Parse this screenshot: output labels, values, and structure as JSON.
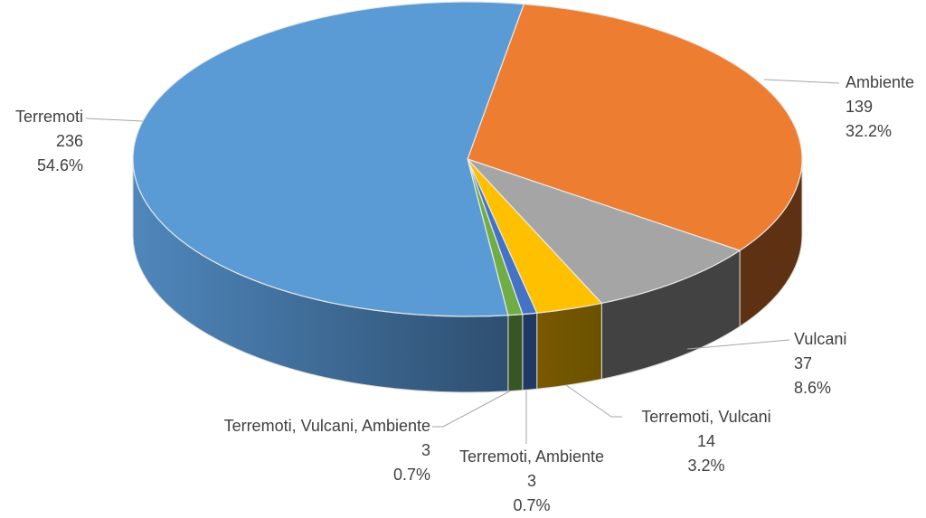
{
  "chart_data": {
    "type": "pie",
    "style": "3d-pie",
    "title": "",
    "legend": "none",
    "categories": [
      "Terremoti",
      "Ambiente",
      "Vulcani",
      "Terremoti, Vulcani",
      "Terremoti, Ambiente",
      "Terremoti, Vulcani, Ambiente"
    ],
    "values": [
      236,
      139,
      37,
      14,
      3,
      3
    ],
    "percentages": [
      "54.6%",
      "32.2%",
      "8.6%",
      "3.2%",
      "0.7%",
      "0.7%"
    ],
    "colors": [
      "#5B9BD5",
      "#ED7D31",
      "#A5A5A5",
      "#FFC000",
      "#4472C4",
      "#70AD47"
    ]
  },
  "labels": [
    {
      "name": "Terremoti",
      "value": "236",
      "pct": "54.6%"
    },
    {
      "name": "Ambiente",
      "value": "139",
      "pct": "32.2%"
    },
    {
      "name": "Vulcani",
      "value": "37",
      "pct": "8.6%"
    },
    {
      "name": "Terremoti, Vulcani",
      "value": "14",
      "pct": "3.2%"
    },
    {
      "name": "Terremoti, Ambiente",
      "value": "3",
      "pct": "0.7%"
    },
    {
      "name": "Terremoti, Vulcani, Ambiente",
      "value": "3",
      "pct": "0.7%"
    }
  ]
}
